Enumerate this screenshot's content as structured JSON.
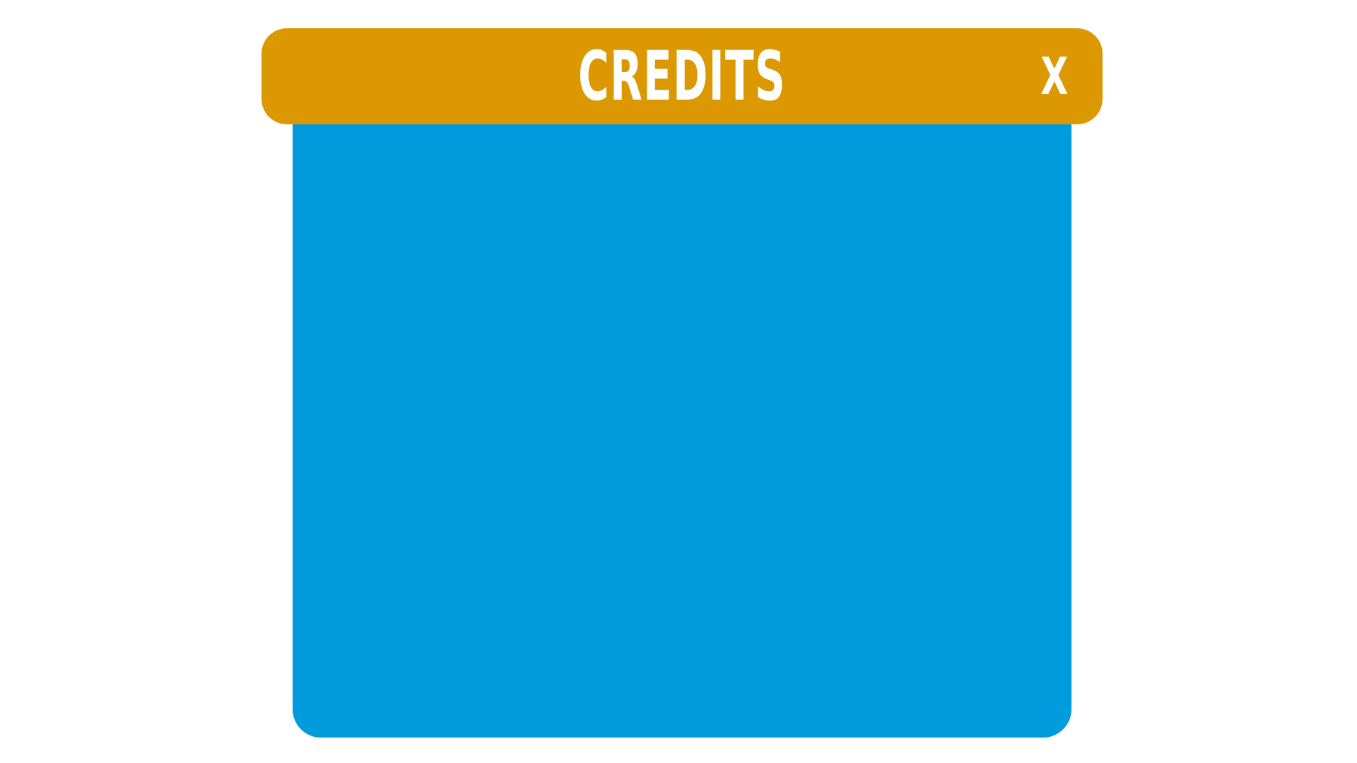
{
  "colors": {
    "title_bar": "#DC9800",
    "panel": "#009BDD",
    "text": "#FFFFFF"
  },
  "credits_window": {
    "title": "CREDITS",
    "close_label": "X",
    "close_icon": "close-icon"
  }
}
